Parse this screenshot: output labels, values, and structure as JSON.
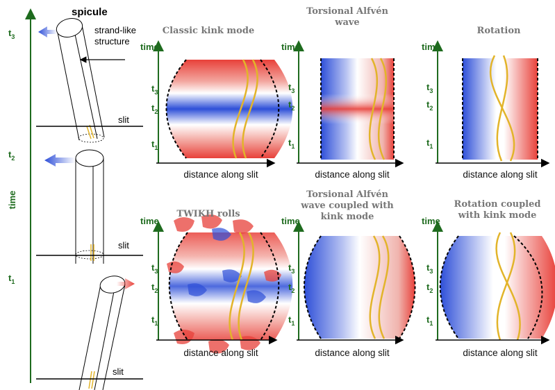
{
  "spicule_label": "spicule",
  "strand_label_line1": "strand-like",
  "strand_label_line2": "structure",
  "slit_label": "slit",
  "time_axis_label": "time",
  "left_time_labels": {
    "t3": "t",
    "t3_sub": "3",
    "t2": "t",
    "t2_sub": "2",
    "t1": "t",
    "t1_sub": "1"
  },
  "panel_time_label": "time",
  "panel_tick_sub": [
    "3",
    "2",
    "1"
  ],
  "xaxis_label": "distance along slit",
  "panels": [
    {
      "title_lines": [
        "Classic kink mode"
      ]
    },
    {
      "title_lines": [
        "Torsional Alfvén",
        "wave"
      ]
    },
    {
      "title_lines": [
        "Rotation"
      ]
    },
    {
      "title_lines": [
        "TWIKH rolls"
      ]
    },
    {
      "title_lines": [
        "Torsional Alfvén",
        "wave coupled with",
        "kink mode"
      ]
    },
    {
      "title_lines": [
        "Rotation coupled",
        "with kink mode"
      ]
    }
  ],
  "colors": {
    "red": "#e8413a",
    "blue": "#2e4fd8",
    "strand": "#e2b42a",
    "axis_green": "#1e6b1e"
  }
}
